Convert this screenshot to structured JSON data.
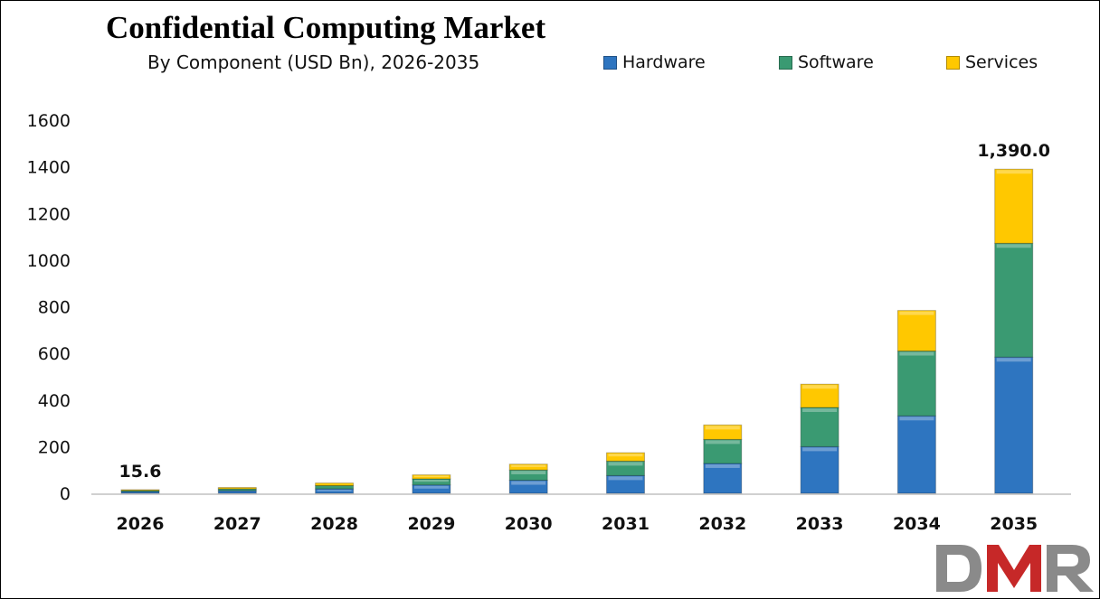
{
  "chart_data": {
    "type": "bar",
    "stacked": true,
    "title": "Confidential Computing Market",
    "subtitle": "By Component (USD Bn), 2026-2035",
    "categories": [
      "2026",
      "2027",
      "2028",
      "2029",
      "2030",
      "2031",
      "2032",
      "2033",
      "2034",
      "2035"
    ],
    "series": [
      {
        "name": "Hardware",
        "color": "#2e75c0",
        "values": [
          7.0,
          11,
          19,
          36,
          56,
          76,
          128,
          200,
          332,
          584
        ]
      },
      {
        "name": "Software",
        "color": "#3a9a72",
        "values": [
          5.3,
          8,
          14,
          26,
          44,
          62,
          103,
          168,
          278,
          488
        ]
      },
      {
        "name": "Services",
        "color": "#ffc800",
        "values": [
          3.3,
          6,
          11,
          17,
          25,
          36,
          62,
          100,
          174,
          318
        ]
      }
    ],
    "data_labels": {
      "2026": "15.6",
      "2035": "1,390.0"
    },
    "ylim": [
      0,
      1600
    ],
    "yticks": [
      "0",
      "200",
      "400",
      "600",
      "800",
      "1000",
      "1200",
      "1400",
      "1600"
    ],
    "grid": false,
    "legend": "top-right"
  },
  "logo": {
    "text_d": "D",
    "text_m": "M",
    "text_r": "R"
  }
}
